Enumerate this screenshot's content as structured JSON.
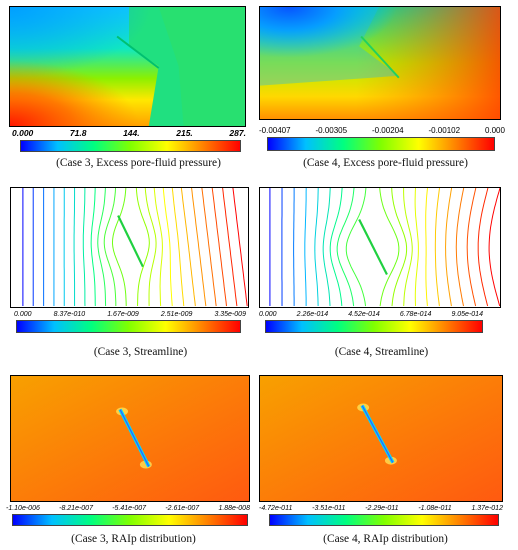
{
  "colormap": [
    "#0000ff",
    "#00c0ff",
    "#00ff80",
    "#80ff00",
    "#ffff00",
    "#ff8000",
    "#ff0000"
  ],
  "panels": [
    {
      "id": "case3-pressure",
      "case": "Case 3",
      "field": "Excess pore-fluid pressure",
      "caption": "(Case 3, Excess pore-fluid pressure)",
      "colorbar": {
        "ticks": [
          "0.000",
          "71.8",
          "144.",
          "215.",
          "287."
        ],
        "min": 0,
        "max": 287,
        "style": "bold-italic"
      }
    },
    {
      "id": "case4-pressure",
      "case": "Case 4",
      "field": "Excess pore-fluid pressure",
      "caption": "(Case 4, Excess pore-fluid pressure)",
      "colorbar": {
        "ticks": [
          "-0.00407",
          "-0.00305",
          "-0.00204",
          "-0.00102",
          "0.000"
        ],
        "min": -0.00407,
        "max": 0,
        "style": "normal"
      }
    },
    {
      "id": "case3-streamline",
      "case": "Case 3",
      "field": "Streamline",
      "caption": "(Case 3, Streamline)",
      "colorbar": {
        "ticks": [
          "0.000",
          "8.37e-010",
          "1.67e-009",
          "2.51e-009",
          "3.35e-009"
        ],
        "min": 0,
        "max": 3.35e-09,
        "style": "italic"
      }
    },
    {
      "id": "case4-streamline",
      "case": "Case 4",
      "field": "Streamline",
      "caption": "(Case 4, Streamline)",
      "colorbar": {
        "ticks": [
          "0.000",
          "2.26e-014",
          "4.52e-014",
          "6.78e-014",
          "9.05e-014"
        ],
        "min": 0,
        "max": 9.05e-14,
        "style": "italic"
      }
    },
    {
      "id": "case3-raip",
      "case": "Case 3",
      "field": "RAIp distribution",
      "caption": "(Case 3, RAIp distribution)",
      "colorbar": {
        "ticks": [
          "-1.10e-006",
          "-8.21e-007",
          "-5.41e-007",
          "-2.61e-007",
          "1.88e-008"
        ],
        "min": -1.1e-06,
        "max": 1.88e-08,
        "style": "italic"
      }
    },
    {
      "id": "case4-raip",
      "case": "Case 4",
      "field": "RAIp distribution",
      "caption": "(Case 4, RAIp distribution)",
      "colorbar": {
        "ticks": [
          "-4.72e-011",
          "-3.51e-011",
          "-2.29e-011",
          "-1.08e-011",
          "1.37e-012"
        ],
        "min": -4.72e-11,
        "max": 1.37e-12,
        "style": "italic"
      }
    }
  ]
}
